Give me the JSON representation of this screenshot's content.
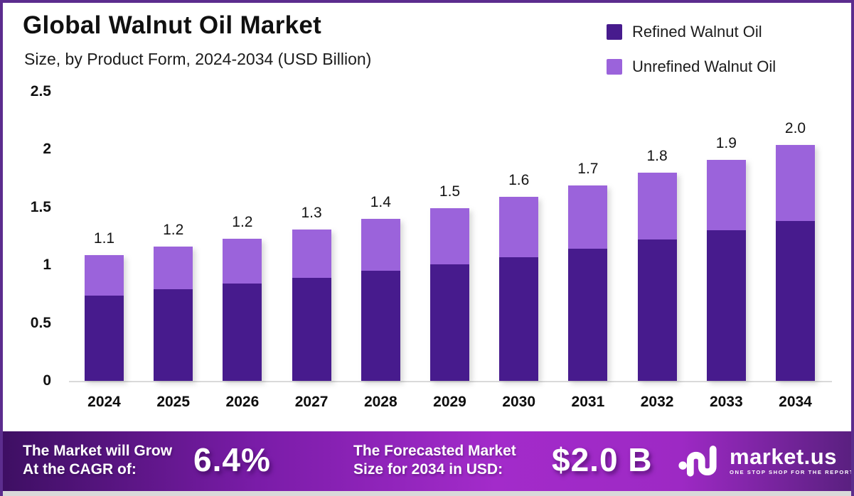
{
  "header": {
    "title": "Global Walnut Oil Market",
    "subtitle": "Size, by Product Form, 2024-2034 (USD Billion)"
  },
  "legend": [
    {
      "label": "Refined Walnut Oil",
      "color": "#471b8d"
    },
    {
      "label": "Unrefined Walnut Oil",
      "color": "#9b63db"
    }
  ],
  "chart_data": {
    "type": "bar",
    "stacked": true,
    "title": "Global Walnut Oil Market",
    "subtitle": "Size, by Product Form, 2024-2034 (USD Billion)",
    "xlabel": "",
    "ylabel": "USD Billion",
    "categories": [
      "2024",
      "2025",
      "2026",
      "2027",
      "2028",
      "2029",
      "2030",
      "2031",
      "2032",
      "2033",
      "2034"
    ],
    "series": [
      {
        "name": "Refined Walnut Oil",
        "color": "#471b8d",
        "values": [
          0.74,
          0.79,
          0.84,
          0.89,
          0.95,
          1.01,
          1.07,
          1.14,
          1.22,
          1.3,
          1.38
        ]
      },
      {
        "name": "Unrefined Walnut Oil",
        "color": "#9b63db",
        "values": [
          0.35,
          0.37,
          0.39,
          0.42,
          0.45,
          0.48,
          0.52,
          0.55,
          0.58,
          0.61,
          0.66
        ]
      }
    ],
    "bar_total_labels": [
      "1.1",
      "1.2",
      "1.2",
      "1.3",
      "1.4",
      "1.5",
      "1.6",
      "1.7",
      "1.8",
      "1.9",
      "2.0"
    ],
    "y_ticks": [
      0,
      0.5,
      1,
      1.5,
      2,
      2.5
    ],
    "y_tick_labels": [
      "0",
      "0.5",
      "1",
      "1.5",
      "2",
      "2.5"
    ],
    "ylim": [
      0,
      2.5
    ],
    "grid": false,
    "legend_position": "top-right"
  },
  "banner": {
    "cagr_line1": "The Market will Grow",
    "cagr_line2": "At the CAGR of:",
    "cagr_value": "6.4%",
    "forecast_line1": "The Forecasted Market",
    "forecast_line2": "Size for 2034 in USD:",
    "forecast_value": "$2.0 B",
    "brand_name": "market.us",
    "brand_tagline": "ONE STOP SHOP FOR THE REPORTS"
  },
  "colors": {
    "refined": "#471b8d",
    "unrefined": "#9b63db",
    "frame_border": "#5c2d8e",
    "axis_line": "#d9d9d9",
    "banner_gradient_start": "#3e0f63",
    "banner_gradient_mid": "#a32bca",
    "banner_gradient_end": "#5a2080",
    "text_dark": "#141414"
  }
}
